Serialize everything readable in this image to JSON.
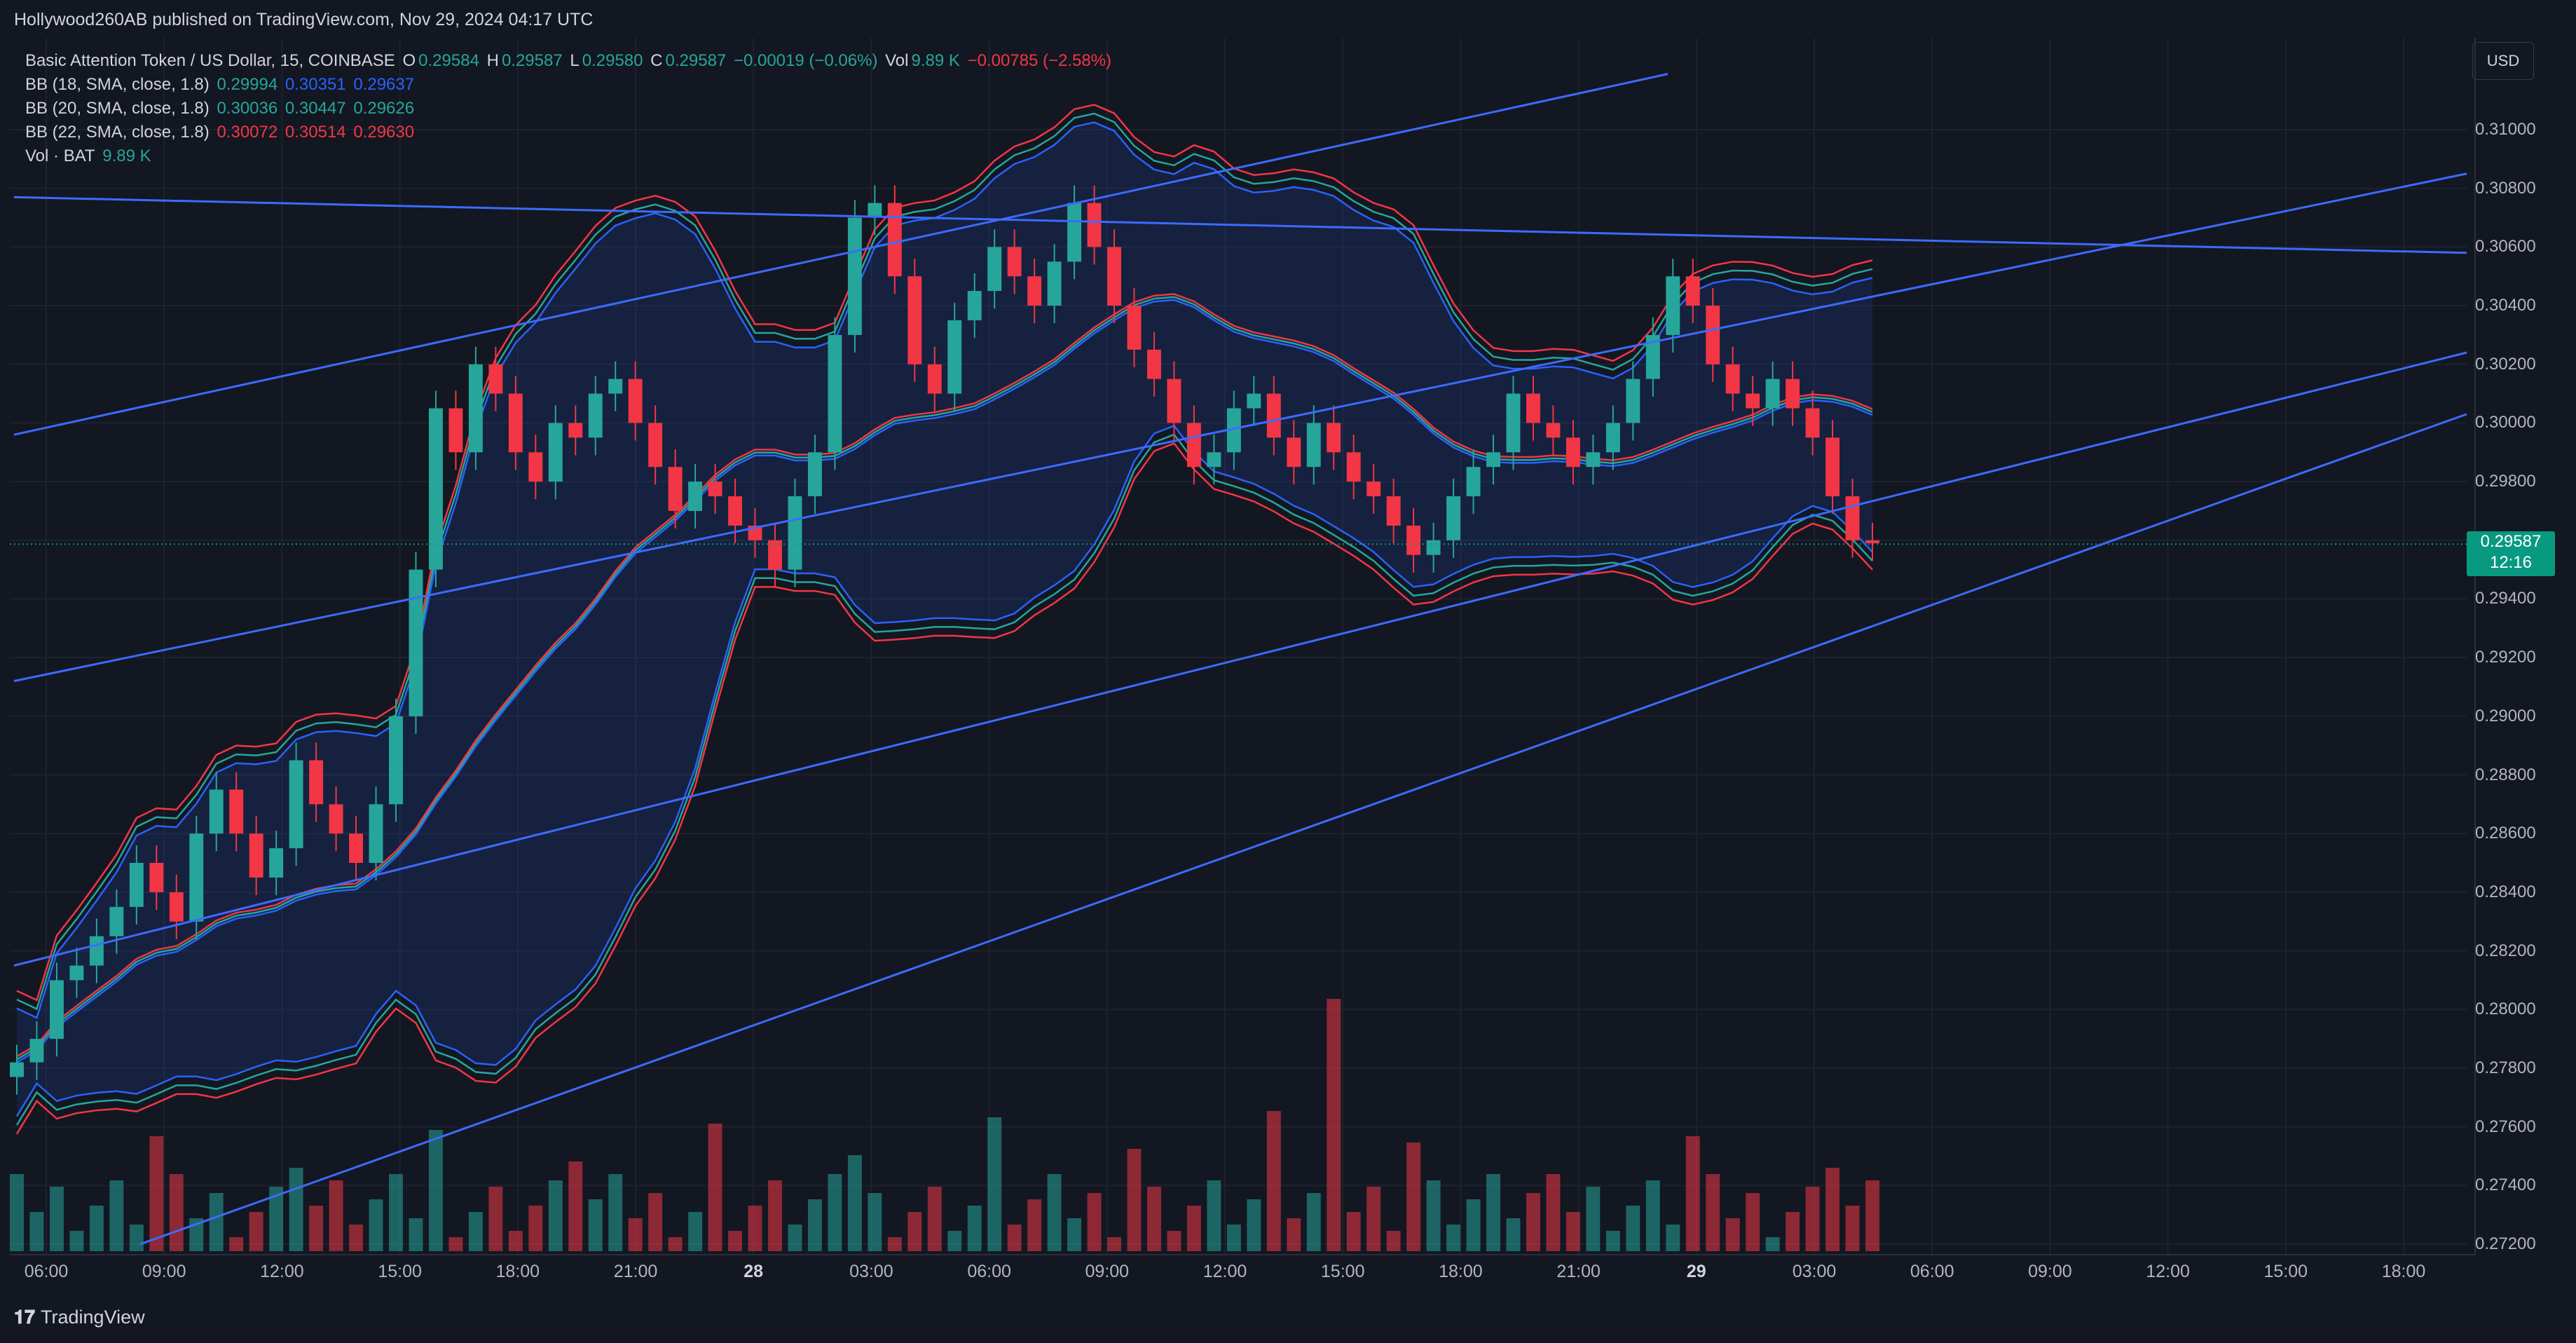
{
  "header": {
    "published": "Hollywood260AB published on TradingView.com, Nov 29, 2024 04:17 UTC"
  },
  "legend": {
    "symbol": "Basic Attention Token / US Dollar, 15, COINBASE",
    "ohlc": {
      "o_label": "O",
      "o": "0.29584",
      "h_label": "H",
      "h": "0.29587",
      "l_label": "L",
      "l": "0.29580",
      "c_label": "C",
      "c": "0.29587",
      "change": "−0.00019 (−0.06%)"
    },
    "vol": {
      "label": "Vol",
      "value": "9.89 K",
      "change": "−0.00785 (−2.58%)"
    },
    "bb18": {
      "label": "BB (18, SMA, close, 1.8)",
      "basis": "0.29994",
      "upper": "0.30351",
      "lower": "0.29637"
    },
    "bb20": {
      "label": "BB (20, SMA, close, 1.8)",
      "basis": "0.30036",
      "upper": "0.30447",
      "lower": "0.29626"
    },
    "bb22": {
      "label": "BB (22, SMA, close, 1.8)",
      "basis": "0.30072",
      "upper": "0.30514",
      "lower": "0.29630"
    },
    "volbat": {
      "label": "Vol · BAT",
      "value": "9.89 K"
    }
  },
  "currency_button": "USD",
  "current_price": {
    "price": "0.29587",
    "countdown": "12:16"
  },
  "colors": {
    "up": "#26a69a",
    "down": "#f23645",
    "line": "#2962ff",
    "bg": "#131722",
    "grid": "#1f2330"
  },
  "icons": {
    "brand": "tradingview-logo-icon"
  },
  "footer": {
    "brand": "TradingView"
  },
  "chart_data": {
    "type": "candlestick",
    "x_ticks": [
      "06:00",
      "09:00",
      "12:00",
      "15:00",
      "18:00",
      "21:00",
      "28",
      "03:00",
      "06:00",
      "09:00",
      "12:00",
      "15:00",
      "18:00",
      "21:00",
      "29",
      "03:00",
      "06:00",
      "09:00",
      "12:00",
      "15:00",
      "18:00"
    ],
    "y_ticks": [
      "0.31000",
      "0.30800",
      "0.30600",
      "0.30400",
      "0.30200",
      "0.30000",
      "0.29800",
      "0.29600",
      "0.29400",
      "0.29200",
      "0.29000",
      "0.28800",
      "0.28600",
      "0.28400",
      "0.28200",
      "0.28000",
      "0.27800",
      "0.27600",
      "0.27400",
      "0.27200"
    ],
    "ylim": [
      0.2716,
      0.3119
    ],
    "candle_closes_approx": [
      0.2782,
      0.279,
      0.281,
      0.2815,
      0.2825,
      0.2835,
      0.285,
      0.284,
      0.283,
      0.286,
      0.2875,
      0.286,
      0.2845,
      0.2855,
      0.2885,
      0.287,
      0.286,
      0.285,
      0.287,
      0.29,
      0.295,
      0.3005,
      0.299,
      0.302,
      0.301,
      0.299,
      0.298,
      0.3,
      0.2995,
      0.301,
      0.3015,
      0.3,
      0.2985,
      0.297,
      0.298,
      0.2975,
      0.2965,
      0.296,
      0.295,
      0.2975,
      0.299,
      0.303,
      0.307,
      0.3075,
      0.305,
      0.302,
      0.301,
      0.3035,
      0.3045,
      0.306,
      0.305,
      0.304,
      0.3055,
      0.3075,
      0.306,
      0.304,
      0.3025,
      0.3015,
      0.3,
      0.2985,
      0.299,
      0.3005,
      0.301,
      0.2995,
      0.2985,
      0.3,
      0.299,
      0.298,
      0.2975,
      0.2965,
      0.2955,
      0.296,
      0.2975,
      0.2985,
      0.299,
      0.301,
      0.3,
      0.2995,
      0.2985,
      0.299,
      0.3,
      0.3015,
      0.303,
      0.305,
      0.304,
      0.302,
      0.301,
      0.3005,
      0.3015,
      0.3005,
      0.2995,
      0.2975,
      0.296,
      0.2959
    ],
    "trendlines": "5 blue trendlines (channel)",
    "volume_max_label": "9.89 K"
  }
}
